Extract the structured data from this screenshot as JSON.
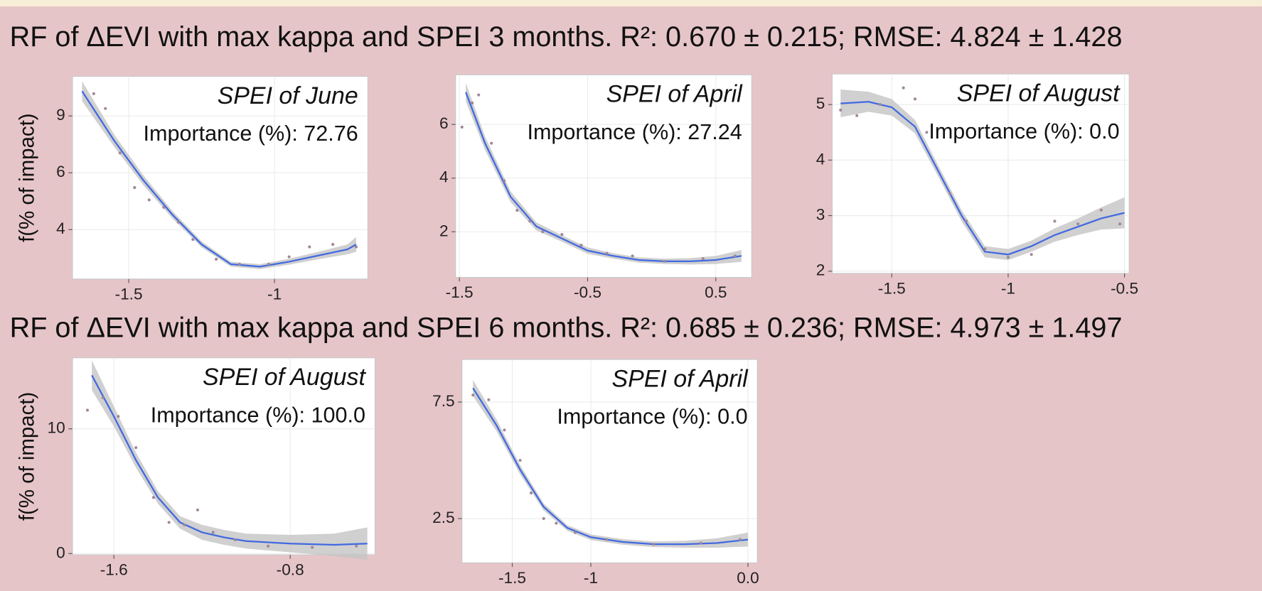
{
  "headings": [
    "RF of ΔEVI with max kappa and SPEI 3 months. R²: 0.670 ± 0.215; RMSE: 4.824 ± 1.428",
    "RF of ΔEVI with max kappa and SPEI 6 months. R²: 0.685 ± 0.236; RMSE: 4.973 ± 1.497"
  ],
  "chart_data": [
    {
      "type": "line",
      "title": "SPEI of June",
      "annotation": "Importance (%): 72.76",
      "ylabel": "f(% of impact)",
      "grid": true,
      "band_color": "#c4c4c4",
      "xlim": [
        -1.693,
        -0.68
      ],
      "xticks": [
        -1.5,
        -1.0
      ],
      "ylim": [
        2.0,
        10.2
      ],
      "yticks": [
        4,
        {
          "value": 6.3,
          "label": "6"
        },
        {
          "value": 8.6,
          "label": "9"
        }
      ],
      "series": [
        {
          "color": "#4169e1",
          "x": [
            -1.66,
            -1.55,
            -1.45,
            -1.35,
            -1.25,
            -1.15,
            -1.05,
            -0.95,
            -0.85,
            -0.75,
            -0.72
          ],
          "values": [
            9.6,
            7.6,
            6.0,
            4.6,
            3.4,
            2.6,
            2.5,
            2.7,
            2.95,
            3.2,
            3.4
          ],
          "errors": [
            0.4,
            0.25,
            0.2,
            0.15,
            0.12,
            0.1,
            0.1,
            0.12,
            0.15,
            0.2,
            0.3
          ]
        },
        {
          "color": "#a0879a",
          "x": [
            -1.62,
            -1.58,
            -1.53,
            -1.48,
            -1.43,
            -1.38,
            -1.33,
            -1.28,
            -1.2,
            -1.12,
            -1.02,
            -0.95,
            -0.88,
            -0.8,
            -0.72
          ],
          "values": [
            9.5,
            8.9,
            7.1,
            5.7,
            5.2,
            4.9,
            4.3,
            3.6,
            2.8,
            2.6,
            2.6,
            2.9,
            3.3,
            3.4,
            3.3
          ]
        }
      ]
    },
    {
      "type": "line",
      "title": "SPEI of April",
      "annotation": "Importance (%): 27.24",
      "grid": true,
      "band_color": "#c4c4c4",
      "xlim": [
        -1.53,
        0.78
      ],
      "xticks": [
        -1.5,
        -0.5,
        0.5
      ],
      "ylim": [
        0.3,
        7.85
      ],
      "yticks": [
        2,
        4,
        6
      ],
      "series": [
        {
          "color": "#4169e1",
          "x": [
            -1.45,
            -1.3,
            -1.1,
            -0.9,
            -0.7,
            -0.5,
            -0.3,
            -0.1,
            0.1,
            0.3,
            0.5,
            0.7
          ],
          "values": [
            7.2,
            5.3,
            3.3,
            2.2,
            1.75,
            1.3,
            1.1,
            0.95,
            0.9,
            0.9,
            0.95,
            1.1
          ],
          "errors": [
            0.35,
            0.25,
            0.2,
            0.15,
            0.12,
            0.12,
            0.1,
            0.1,
            0.1,
            0.12,
            0.15,
            0.22
          ]
        },
        {
          "color": "#a0879a",
          "x": [
            -1.48,
            -1.4,
            -1.35,
            -1.25,
            -1.15,
            -1.05,
            -0.95,
            -0.85,
            -0.7,
            -0.55,
            -0.35,
            -0.15,
            0.1,
            0.4,
            0.65
          ],
          "values": [
            5.9,
            6.8,
            7.1,
            5.3,
            3.9,
            2.8,
            2.4,
            2.0,
            1.9,
            1.5,
            1.2,
            1.1,
            0.9,
            1.0,
            1.1
          ]
        }
      ]
    },
    {
      "type": "line",
      "title": "SPEI of August",
      "annotation": "Importance (%): 0.0",
      "grid": true,
      "band_color": "#c4c4c4",
      "xlim": [
        -1.756,
        -0.48
      ],
      "xticks": [
        -1.5,
        -1.0,
        -0.5
      ],
      "ylim": [
        1.96,
        5.55
      ],
      "yticks": [
        2,
        3,
        4,
        5
      ],
      "series": [
        {
          "color": "#4169e1",
          "x": [
            -1.72,
            -1.6,
            -1.5,
            -1.4,
            -1.3,
            -1.2,
            -1.1,
            -1.0,
            -0.9,
            -0.8,
            -0.7,
            -0.6,
            -0.5
          ],
          "values": [
            5.02,
            5.05,
            4.95,
            4.6,
            3.8,
            3.0,
            2.35,
            2.3,
            2.45,
            2.65,
            2.8,
            2.95,
            3.05
          ],
          "errors": [
            0.25,
            0.18,
            0.15,
            0.12,
            0.1,
            0.1,
            0.1,
            0.1,
            0.1,
            0.12,
            0.15,
            0.2,
            0.28
          ]
        },
        {
          "color": "#a0879a",
          "x": [
            -1.72,
            -1.65,
            -1.55,
            -1.45,
            -1.4,
            -1.35,
            -1.25,
            -1.18,
            -1.1,
            -1.0,
            -0.9,
            -0.8,
            -0.7,
            -0.6,
            -0.52
          ],
          "values": [
            4.9,
            4.8,
            5.0,
            5.3,
            5.1,
            4.5,
            3.4,
            2.9,
            2.4,
            2.25,
            2.3,
            2.9,
            2.85,
            3.1,
            2.85
          ]
        }
      ]
    },
    {
      "type": "line",
      "title": "SPEI of August",
      "annotation": "Importance (%): 100.0",
      "ylabel": "f(% of impact)",
      "grid": true,
      "band_color": "#c4c4c4",
      "xlim": [
        -1.788,
        -0.415
      ],
      "xticks": [
        -1.6,
        -0.8
      ],
      "ylim": [
        -0.1,
        15.7
      ],
      "yticks": [
        0,
        10
      ],
      "series": [
        {
          "color": "#4169e1",
          "x": [
            -1.7,
            -1.6,
            -1.5,
            -1.4,
            -1.3,
            -1.2,
            -1.1,
            -1.0,
            -0.8,
            -0.6,
            -0.45
          ],
          "values": [
            14.3,
            11,
            7.5,
            4.5,
            2.5,
            1.7,
            1.3,
            1.0,
            0.8,
            0.7,
            0.8
          ],
          "errors": [
            1.2,
            0.8,
            0.6,
            0.5,
            0.5,
            0.6,
            0.6,
            0.6,
            0.7,
            0.9,
            1.3
          ]
        },
        {
          "color": "#a0879a",
          "x": [
            -1.72,
            -1.65,
            -1.58,
            -1.5,
            -1.42,
            -1.35,
            -1.28,
            -1.22,
            -1.15,
            -1.05,
            -0.9,
            -0.7,
            -0.5
          ],
          "values": [
            11.5,
            12.5,
            11,
            8.5,
            4.5,
            2.5,
            2.3,
            3.5,
            1.7,
            1.1,
            0.6,
            0.5,
            0.6
          ]
        }
      ]
    },
    {
      "type": "line",
      "title": "SPEI of April",
      "annotation": "Importance (%): 0.0",
      "grid": true,
      "band_color": "#c4c4c4",
      "xlim": [
        -1.82,
        0.06
      ],
      "xticks": [
        -1.5,
        -1.0,
        {
          "value": 0.0,
          "label": "0.0"
        }
      ],
      "ylim": [
        0.6,
        9.33
      ],
      "yticks": [
        2.5,
        7.5
      ],
      "series": [
        {
          "color": "#4169e1",
          "x": [
            -1.75,
            -1.6,
            -1.45,
            -1.3,
            -1.15,
            -1.0,
            -0.8,
            -0.6,
            -0.4,
            -0.2,
            0.0
          ],
          "values": [
            8.1,
            6.5,
            4.6,
            3.0,
            2.1,
            1.7,
            1.5,
            1.4,
            1.4,
            1.45,
            1.6
          ],
          "errors": [
            0.35,
            0.25,
            0.2,
            0.15,
            0.12,
            0.12,
            0.12,
            0.12,
            0.15,
            0.2,
            0.3
          ]
        },
        {
          "color": "#a0879a",
          "x": [
            -1.75,
            -1.65,
            -1.55,
            -1.45,
            -1.38,
            -1.3,
            -1.22,
            -1.1,
            -0.9,
            -0.6,
            -0.3,
            -0.05
          ],
          "values": [
            7.8,
            7.6,
            6.3,
            5.0,
            3.6,
            2.5,
            2.3,
            1.9,
            1.6,
            1.4,
            1.45,
            1.6
          ]
        }
      ]
    }
  ]
}
